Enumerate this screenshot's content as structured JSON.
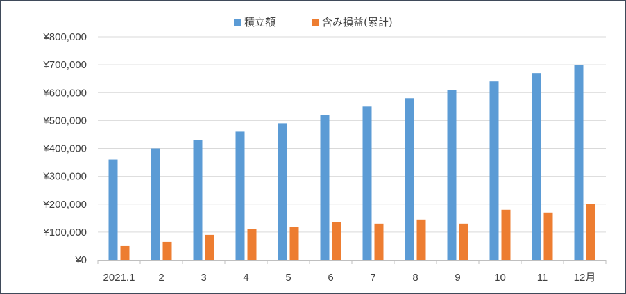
{
  "chart_data": {
    "type": "bar",
    "title": "",
    "xlabel": "",
    "ylabel": "",
    "categories": [
      "2021.1",
      "2",
      "3",
      "4",
      "5",
      "6",
      "7",
      "8",
      "9",
      "10",
      "11",
      "12月"
    ],
    "series": [
      {
        "name": "積立額",
        "color": "#5b9bd5",
        "values": [
          360000,
          400000,
          430000,
          460000,
          490000,
          520000,
          550000,
          580000,
          610000,
          640000,
          670000,
          700000
        ]
      },
      {
        "name": "含み損益(累計)",
        "color": "#ed7d31",
        "values": [
          50000,
          65000,
          90000,
          112000,
          118000,
          135000,
          130000,
          145000,
          130000,
          180000,
          170000,
          200000
        ]
      }
    ],
    "ylim": [
      0,
      800000
    ],
    "yticks": [
      "¥0",
      "¥100,000",
      "¥200,000",
      "¥300,000",
      "¥400,000",
      "¥500,000",
      "¥600,000",
      "¥700,000",
      "¥800,000"
    ],
    "grid": true,
    "legend": "top-center"
  }
}
